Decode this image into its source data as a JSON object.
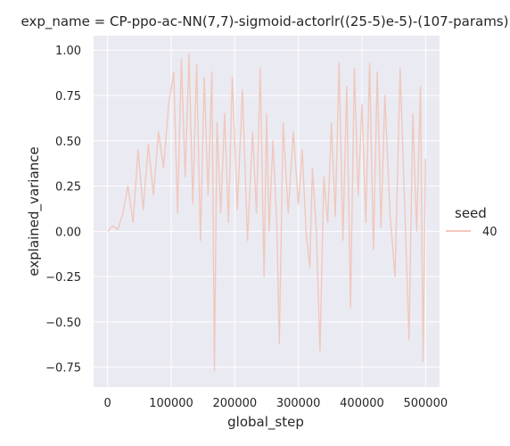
{
  "chart_data": {
    "type": "line",
    "title": "exp_name = CP-ppo-ac-NN(7,7)-sigmoid-actorlr((25-5)e-5)-(107-params)",
    "xlabel": "global_step",
    "ylabel": "explained_variance",
    "xlim": [
      -22000,
      522000
    ],
    "ylim": [
      -0.86,
      1.08
    ],
    "xticks": [
      0,
      100000,
      200000,
      300000,
      400000,
      500000
    ],
    "xtick_labels": [
      "0",
      "100000",
      "200000",
      "300000",
      "400000",
      "500000"
    ],
    "yticks": [
      -0.75,
      -0.5,
      -0.25,
      0.0,
      0.25,
      0.5,
      0.75,
      1.0
    ],
    "ytick_labels": [
      "−0.75",
      "−0.50",
      "−0.25",
      "0.00",
      "0.25",
      "0.50",
      "0.75",
      "1.00"
    ],
    "grid": true,
    "legend": {
      "title": "seed",
      "placement": "right",
      "entries": [
        "40"
      ]
    },
    "series": [
      {
        "name": "40",
        "color": "#f0c8bc",
        "x": [
          0,
          8000,
          16000,
          24000,
          32000,
          40000,
          48000,
          56000,
          64000,
          72000,
          80000,
          88000,
          96000,
          104000,
          110000,
          116000,
          122000,
          128000,
          134000,
          140000,
          146000,
          152000,
          158000,
          164000,
          168000,
          172000,
          178000,
          184000,
          190000,
          196000,
          204000,
          212000,
          220000,
          228000,
          234000,
          240000,
          246000,
          250000,
          254000,
          260000,
          266000,
          270000,
          276000,
          284000,
          292000,
          300000,
          306000,
          312000,
          318000,
          322000,
          328000,
          334000,
          340000,
          346000,
          352000,
          358000,
          364000,
          370000,
          376000,
          382000,
          388000,
          394000,
          400000,
          406000,
          412000,
          418000,
          424000,
          430000,
          436000,
          444000,
          452000,
          460000,
          468000,
          474000,
          480000,
          486000,
          492000,
          496000,
          500000
        ],
        "values": [
          0.0,
          0.03,
          0.01,
          0.1,
          0.25,
          0.05,
          0.45,
          0.12,
          0.48,
          0.2,
          0.55,
          0.35,
          0.7,
          0.88,
          0.1,
          0.95,
          0.3,
          0.98,
          0.15,
          0.92,
          -0.05,
          0.85,
          0.2,
          0.88,
          -0.77,
          0.6,
          0.1,
          0.65,
          0.05,
          0.85,
          0.12,
          0.78,
          -0.05,
          0.55,
          0.1,
          0.9,
          -0.25,
          0.65,
          0.0,
          0.5,
          0.05,
          -0.62,
          0.6,
          0.1,
          0.55,
          0.15,
          0.45,
          0.0,
          -0.2,
          0.35,
          0.02,
          -0.66,
          0.3,
          0.05,
          0.6,
          0.08,
          0.93,
          -0.05,
          0.8,
          -0.42,
          0.9,
          0.2,
          0.7,
          0.05,
          0.93,
          -0.1,
          0.88,
          0.02,
          0.75,
          0.1,
          -0.25,
          0.9,
          0.05,
          -0.6,
          0.65,
          0.0,
          0.8,
          -0.72,
          0.4
        ]
      }
    ]
  }
}
